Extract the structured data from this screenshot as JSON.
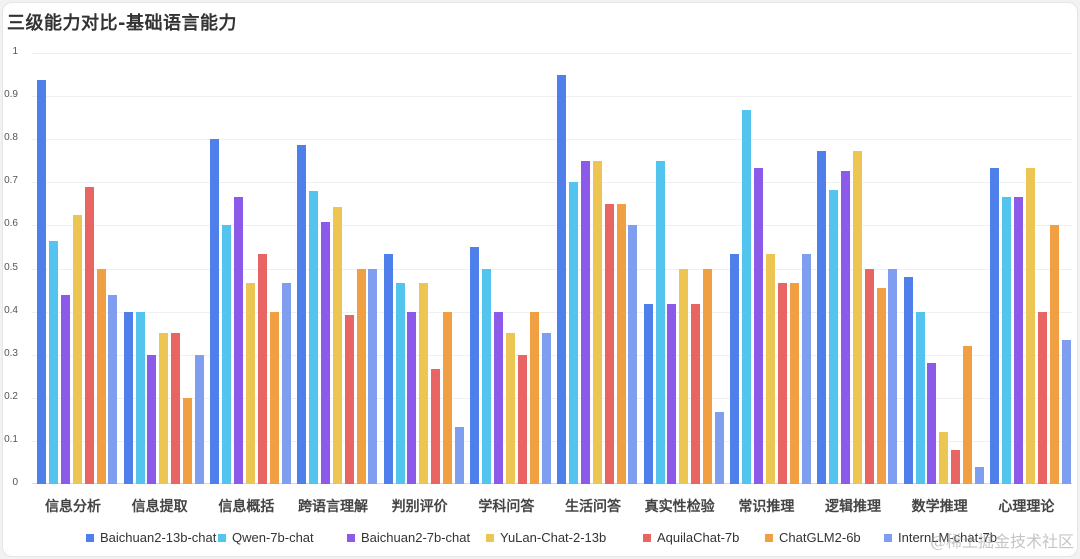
{
  "title": "三级能力对比-基础语言能力",
  "watermark": "@稀土掘金技术社区",
  "chart_data": {
    "type": "bar",
    "title": "三级能力对比-基础语言能力",
    "xlabel": "",
    "ylabel": "",
    "ylim": [
      0,
      1
    ],
    "yticks": [
      "0",
      "0.1",
      "0.2",
      "0.3",
      "0.4",
      "0.5",
      "0.6",
      "0.7",
      "0.8",
      "0.9",
      "1"
    ],
    "grid": true,
    "legend_position": "bottom",
    "categories": [
      "信息分析",
      "信息提取",
      "信息概括",
      "跨语言理解",
      "判别评价",
      "学科问答",
      "生活问答",
      "真实性检验",
      "常识推理",
      "逻辑推理",
      "数学推理",
      "心理理论"
    ],
    "series": [
      {
        "name": "Baichuan2-13b-chat",
        "color": "#4f7fea",
        "values": [
          0.938,
          0.4,
          0.8,
          0.786,
          0.533,
          0.55,
          0.95,
          0.417,
          0.533,
          0.773,
          0.48,
          0.733
        ]
      },
      {
        "name": "Qwen-7b-chat",
        "color": "#52c4ee",
        "values": [
          0.563,
          0.4,
          0.6,
          0.679,
          0.467,
          0.5,
          0.7,
          0.75,
          0.867,
          0.682,
          0.4,
          0.667
        ]
      },
      {
        "name": "Baichuan2-7b-chat",
        "color": "#8b5ae8",
        "values": [
          0.438,
          0.3,
          0.667,
          0.607,
          0.4,
          0.4,
          0.75,
          0.417,
          0.733,
          0.727,
          0.28,
          0.667
        ]
      },
      {
        "name": "YuLan-Chat-2-13b",
        "color": "#ecc552",
        "values": [
          0.625,
          0.35,
          0.467,
          0.643,
          0.467,
          0.35,
          0.75,
          0.5,
          0.533,
          0.773,
          0.12,
          0.733
        ]
      },
      {
        "name": "AquilaChat-7b",
        "color": "#e96563",
        "values": [
          0.688,
          0.35,
          0.533,
          0.393,
          0.267,
          0.3,
          0.65,
          0.417,
          0.467,
          0.5,
          0.08,
          0.4
        ]
      },
      {
        "name": "ChatGLM2-6b",
        "color": "#f0a043",
        "values": [
          0.5,
          0.2,
          0.4,
          0.5,
          0.4,
          0.4,
          0.65,
          0.5,
          0.467,
          0.455,
          0.32,
          0.6
        ]
      },
      {
        "name": "InternLM-chat-7b",
        "color": "#7f9ef0",
        "values": [
          0.438,
          0.3,
          0.467,
          0.5,
          0.133,
          0.35,
          0.6,
          0.167,
          0.533,
          0.5,
          0.04,
          0.333
        ]
      }
    ]
  }
}
